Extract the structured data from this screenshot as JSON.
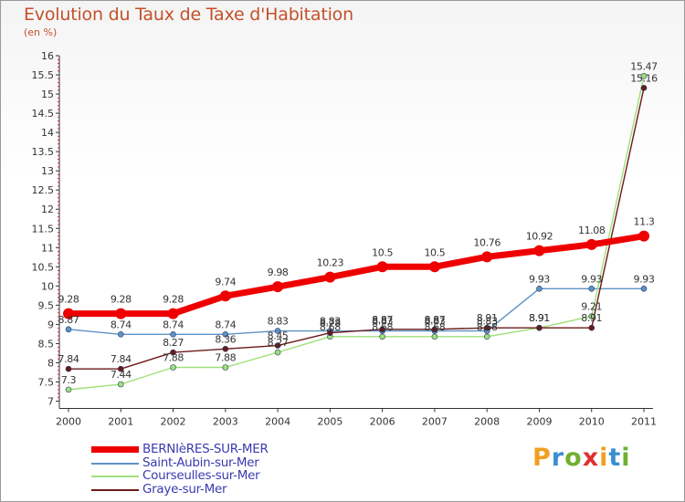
{
  "title": "Evolution du Taux de Taxe d'Habitation",
  "subtitle": "(en %)",
  "logo": {
    "text": "Proxiti",
    "letter_colors": [
      "#f0a020",
      "#3a8fd0",
      "#70b030",
      "#e03030",
      "#f0a020",
      "#3a8fd0",
      "#70b030"
    ]
  },
  "chart_data": {
    "type": "line",
    "x": [
      "2000",
      "2001",
      "2002",
      "2003",
      "2004",
      "2005",
      "2006",
      "2007",
      "2008",
      "2009",
      "2010",
      "2011"
    ],
    "ylim": [
      7,
      16
    ],
    "yticks": [
      "7",
      "7.5",
      "8",
      "8.5",
      "9",
      "9.5",
      "10",
      "10.5",
      "11",
      "11.5",
      "12",
      "12.5",
      "13",
      "13.5",
      "14",
      "14.5",
      "15",
      "15.5",
      "16"
    ],
    "grid": false,
    "legend_position": "bottom-left",
    "series": [
      {
        "name": "BERNIèRES-SUR-MER",
        "color": "#ee0000",
        "values": [
          9.28,
          9.28,
          9.28,
          9.74,
          9.98,
          10.23,
          10.5,
          10.5,
          10.76,
          10.92,
          11.08,
          11.3
        ],
        "labels": [
          "9.28",
          "9.28",
          "9.28",
          "9.74",
          "9.98",
          "10.23",
          "10.5",
          "10.5",
          "10.76",
          "10.92",
          "11.08",
          "11.3"
        ]
      },
      {
        "name": "Saint-Aubin-sur-Mer",
        "color": "#5d92c4",
        "values": [
          8.87,
          8.74,
          8.74,
          8.74,
          8.83,
          8.83,
          8.83,
          8.83,
          8.83,
          9.93,
          9.93,
          9.93
        ],
        "labels": [
          "8.87",
          "8.74",
          "8.74",
          "8.74",
          "8.83",
          "8.83",
          "8.83",
          "8.83",
          "8.83",
          "9.93",
          "9.93",
          "9.93"
        ]
      },
      {
        "name": "Courseulles-sur-Mer",
        "color": "#9ee07a",
        "values": [
          7.3,
          7.44,
          7.88,
          7.88,
          8.27,
          8.68,
          8.68,
          8.68,
          8.68,
          8.91,
          9.21,
          15.47
        ],
        "labels": [
          "7.3",
          "7.44",
          "7.88",
          "7.88",
          "8.27",
          "8.68",
          "8.68",
          "8.68",
          "8.68",
          "8.91",
          "9.21",
          "15.47"
        ]
      },
      {
        "name": "Graye-sur-Mer",
        "color": "#6b1a1a",
        "values": [
          7.84,
          7.84,
          8.27,
          8.36,
          8.45,
          8.78,
          8.87,
          8.87,
          8.91,
          8.91,
          8.91,
          15.16
        ],
        "labels": [
          "7.84",
          "7.84",
          "8.27",
          "8.36",
          "8.45",
          "8.78",
          "8.87",
          "8.87",
          "8.91",
          "8.91",
          "8.91",
          "15.16"
        ]
      }
    ]
  }
}
